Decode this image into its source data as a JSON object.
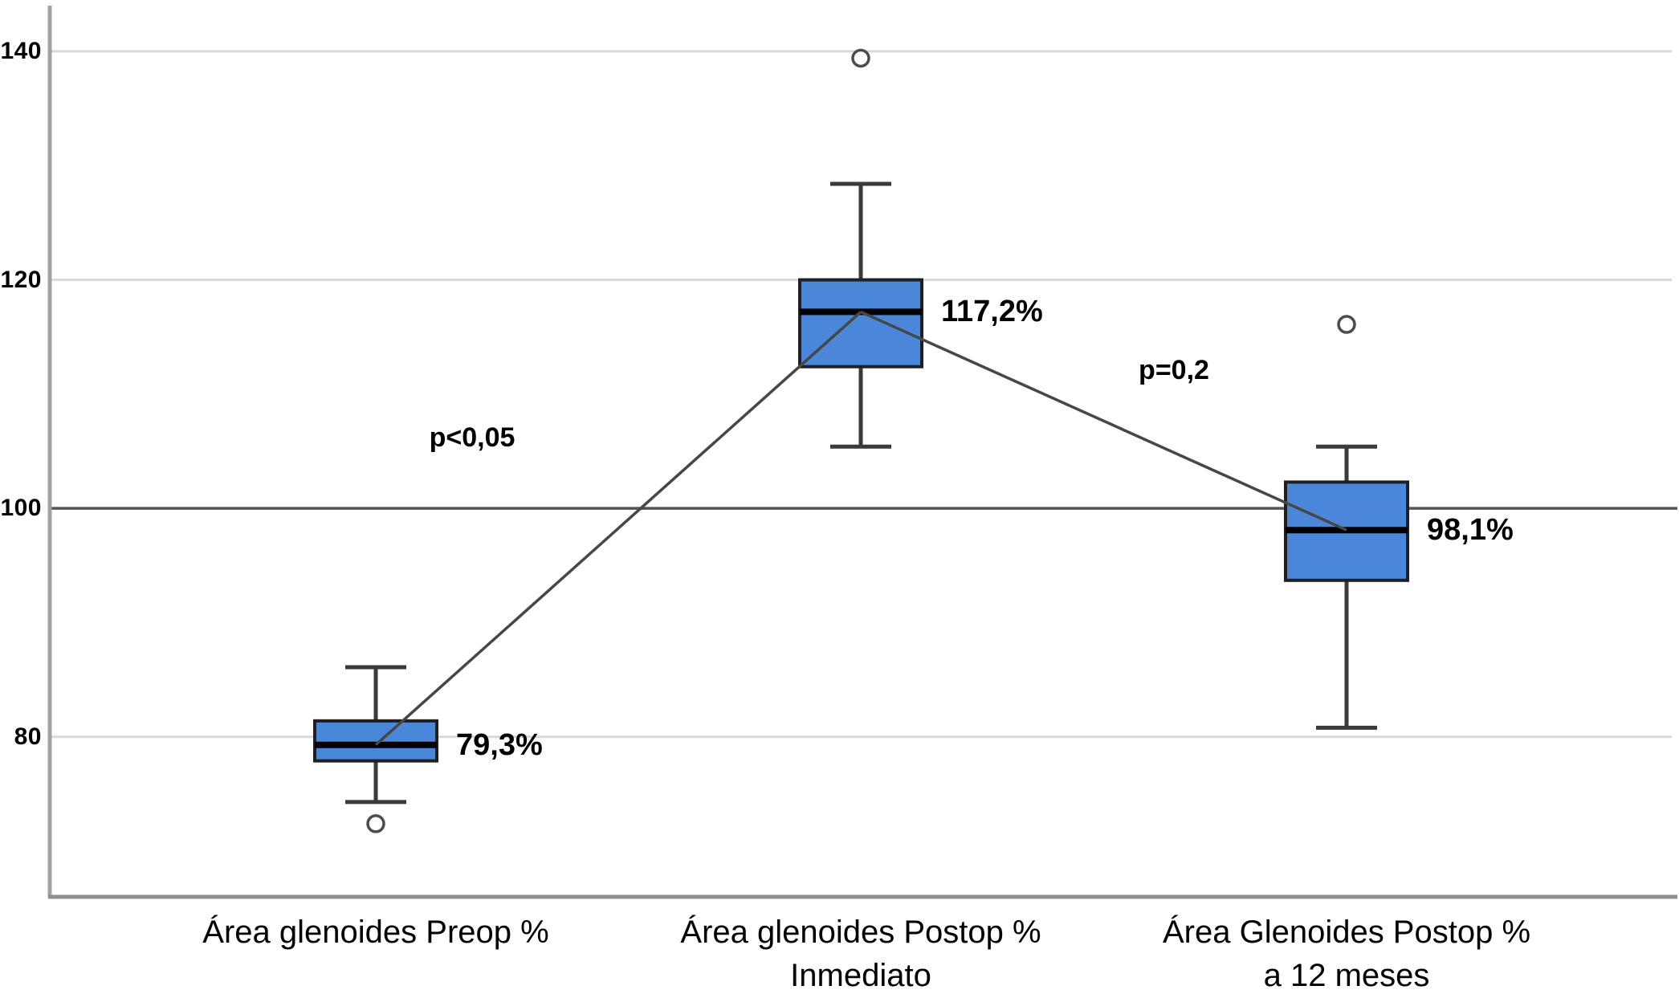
{
  "chart_data": {
    "type": "box",
    "title": "",
    "xlabel": "",
    "ylabel": "",
    "ylim": [
      66,
      144
    ],
    "grid": "horizontal",
    "legend": "none",
    "reference_line": 100,
    "yticks": [
      {
        "value": 140,
        "label": "140"
      },
      {
        "value": 120,
        "label": "120"
      },
      {
        "value": 100,
        "label": "100"
      },
      {
        "value": 80,
        "label": "80"
      }
    ],
    "categories": [
      {
        "line1": "Área glenoides Preop %",
        "line2": ""
      },
      {
        "line1": "Área glenoides Postop %",
        "line2": "Inmediato"
      },
      {
        "line1": "Área Glenoides Postop %",
        "line2": "a 12 meses"
      }
    ],
    "boxes": [
      {
        "name": "preop",
        "median": 79.3,
        "median_label": "79,3%",
        "q1": 77.9,
        "q3": 81.4,
        "whisker_low": 74.3,
        "whisker_high": 86.1,
        "outliers": [
          72.4
        ]
      },
      {
        "name": "postop-inmediato",
        "median": 117.2,
        "median_label": "117,2%",
        "q1": 112.4,
        "q3": 120.0,
        "whisker_low": 105.4,
        "whisker_high": 128.4,
        "outliers": [
          139.4
        ]
      },
      {
        "name": "postop-12-meses",
        "median": 98.1,
        "median_label": "98,1%",
        "q1": 93.7,
        "q3": 102.3,
        "whisker_low": 80.8,
        "whisker_high": 105.4,
        "outliers": [
          116.1
        ]
      }
    ],
    "median_connectors": true,
    "annotations": [
      {
        "text": "p<0,05",
        "between": [
          "preop",
          "postop-inmediato"
        ]
      },
      {
        "text": "p=0,2",
        "between": [
          "postop-inmediato",
          "postop-12-meses"
        ]
      }
    ],
    "colors": {
      "box_fill": "#4a87d9",
      "box_border": "#1f1f1f",
      "median": "#000000",
      "whisker": "#3a3a3a",
      "gridline": "#d8d8d8",
      "reference_line": "#545454",
      "axis": "#a3a3a3",
      "x_axis": "#8f8f8f",
      "connector": "#474747",
      "outlier_stroke": "#4c4c4c",
      "text": "#000000",
      "background": "#ffffff"
    }
  }
}
